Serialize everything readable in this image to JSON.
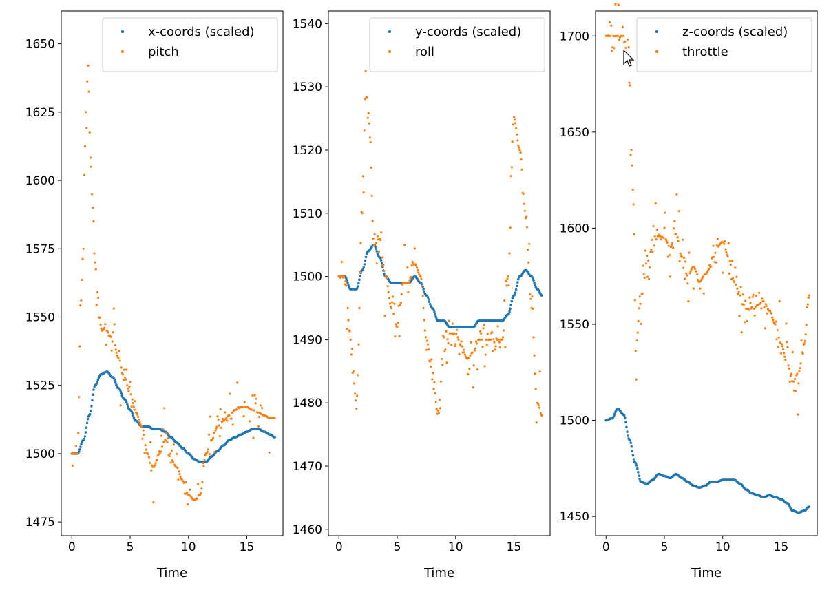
{
  "colors": {
    "series_a": "#1f77b4",
    "series_b": "#ff7f0e"
  },
  "chart_data": [
    {
      "type": "scatter",
      "xlabel": "Time",
      "ylabel": "",
      "xlim": [
        -0.9,
        18.1
      ],
      "ylim": [
        1470,
        1662
      ],
      "xticks": [
        0,
        5,
        10,
        15
      ],
      "yticks": [
        1475,
        1500,
        1525,
        1550,
        1575,
        1600,
        1625,
        1650
      ],
      "legend_position": "top-right",
      "grid": false,
      "series": [
        {
          "name": "x-coords (scaled)",
          "color": "#1f77b4",
          "x": [
            0,
            0.5,
            1,
            1.5,
            2,
            2.5,
            3,
            3.5,
            4,
            4.5,
            5,
            5.5,
            6,
            6.5,
            7,
            7.5,
            8,
            8.5,
            9,
            9.5,
            10,
            10.5,
            11,
            11.5,
            12,
            12.5,
            13,
            13.5,
            14,
            14.5,
            15,
            15.5,
            16,
            16.5,
            17,
            17.4
          ],
          "values": [
            1500,
            1500,
            1505,
            1514,
            1525,
            1529,
            1530,
            1528,
            1524,
            1520,
            1516,
            1512,
            1510,
            1510,
            1509,
            1509,
            1508,
            1506,
            1504,
            1502,
            1500,
            1498,
            1497,
            1497,
            1499,
            1501,
            1503,
            1505,
            1506,
            1507,
            1508,
            1509,
            1509,
            1508,
            1507,
            1506
          ]
        },
        {
          "name": "pitch",
          "color": "#ff7f0e",
          "x": [
            0,
            0.5,
            0.8,
            1,
            1.2,
            1.4,
            1.6,
            1.8,
            2,
            2.2,
            2.4,
            2.6,
            2.8,
            3,
            3.3,
            3.6,
            4,
            4.5,
            5,
            5.5,
            6,
            6.5,
            7,
            7.5,
            8,
            8.5,
            9,
            9.5,
            10,
            10.5,
            11,
            11.5,
            12,
            12.5,
            13,
            13.5,
            14,
            14.5,
            15,
            15.5,
            16,
            16.5,
            17,
            17.4
          ],
          "values": [
            1500,
            1500,
            1560,
            1575,
            1625,
            1640,
            1610,
            1590,
            1570,
            1560,
            1548,
            1545,
            1546,
            1545,
            1543,
            1540,
            1535,
            1528,
            1522,
            1515,
            1510,
            1500,
            1495,
            1500,
            1505,
            1498,
            1495,
            1490,
            1485,
            1483,
            1485,
            1500,
            1505,
            1510,
            1512,
            1514,
            1516,
            1517,
            1517,
            1516,
            1515,
            1514,
            1513,
            1513
          ]
        }
      ]
    },
    {
      "type": "scatter",
      "xlabel": "Time",
      "ylabel": "",
      "xlim": [
        -0.9,
        18.1
      ],
      "ylim": [
        1459,
        1542
      ],
      "xticks": [
        0,
        5,
        10,
        15
      ],
      "yticks": [
        1460,
        1470,
        1480,
        1490,
        1500,
        1510,
        1520,
        1530,
        1540
      ],
      "legend_position": "top-right",
      "grid": false,
      "series": [
        {
          "name": "y-coords (scaled)",
          "color": "#1f77b4",
          "x": [
            0,
            0.5,
            1,
            1.5,
            2,
            2.5,
            3,
            3.5,
            4,
            4.5,
            5,
            5.5,
            6,
            6.5,
            7,
            7.5,
            8,
            8.5,
            9,
            9.5,
            10,
            10.5,
            11,
            11.5,
            12,
            12.5,
            13,
            13.5,
            14,
            14.5,
            15,
            15.5,
            16,
            16.5,
            17,
            17.4
          ],
          "values": [
            1500,
            1500,
            1498,
            1498,
            1501,
            1504,
            1505,
            1503,
            1500,
            1499,
            1499,
            1499,
            1499,
            1500,
            1499,
            1497,
            1495,
            1493,
            1493,
            1492,
            1492,
            1492,
            1492,
            1492,
            1493,
            1493,
            1493,
            1493,
            1493,
            1494,
            1497,
            1500,
            1501,
            1500,
            1498,
            1497
          ]
        },
        {
          "name": "roll",
          "color": "#ff7f0e",
          "x": [
            0,
            0.5,
            1,
            1.5,
            2,
            2.3,
            2.6,
            3,
            3.5,
            4,
            4.5,
            5,
            5.5,
            6,
            6.5,
            7,
            7.5,
            8,
            8.5,
            9,
            9.5,
            10,
            10.5,
            11,
            11.5,
            12,
            12.5,
            13,
            13.5,
            14,
            14.5,
            15,
            15.5,
            16,
            16.5,
            17,
            17.4
          ],
          "values": [
            1500,
            1500,
            1490,
            1480,
            1510,
            1530,
            1525,
            1505,
            1506,
            1500,
            1495,
            1492,
            1499,
            1499,
            1502,
            1500,
            1490,
            1485,
            1478,
            1488,
            1491,
            1491,
            1489,
            1487,
            1488,
            1490,
            1490,
            1490,
            1490,
            1490,
            1500,
            1525,
            1520,
            1510,
            1495,
            1480,
            1478
          ]
        }
      ]
    },
    {
      "type": "scatter",
      "xlabel": "Time",
      "ylabel": "",
      "xlim": [
        -0.9,
        18.1
      ],
      "ylim": [
        1440,
        1713
      ],
      "xticks": [
        0,
        5,
        10,
        15
      ],
      "yticks": [
        1450,
        1500,
        1550,
        1600,
        1650,
        1700
      ],
      "legend_position": "top-right",
      "grid": false,
      "series": [
        {
          "name": "z-coords (scaled)",
          "color": "#1f77b4",
          "x": [
            0,
            0.5,
            1,
            1.5,
            2,
            2.5,
            3,
            3.5,
            4,
            4.5,
            5,
            5.5,
            6,
            6.5,
            7,
            7.5,
            8,
            8.5,
            9,
            9.5,
            10,
            10.5,
            11,
            11.5,
            12,
            12.5,
            13,
            13.5,
            14,
            14.5,
            15,
            15.5,
            16,
            16.5,
            17,
            17.4
          ],
          "values": [
            1500,
            1501,
            1506,
            1503,
            1490,
            1478,
            1468,
            1467,
            1469,
            1472,
            1471,
            1470,
            1472,
            1470,
            1468,
            1466,
            1465,
            1466,
            1468,
            1468,
            1469,
            1469,
            1469,
            1467,
            1464,
            1462,
            1461,
            1460,
            1461,
            1460,
            1459,
            1457,
            1453,
            1452,
            1453,
            1455
          ]
        },
        {
          "name": "throttle",
          "color": "#ff7f0e",
          "x": [
            0,
            0.5,
            1,
            1.5,
            2,
            2.3,
            2.6,
            3,
            3.5,
            4,
            4.5,
            5,
            5.5,
            6,
            6.5,
            7,
            7.5,
            8,
            8.5,
            9,
            9.5,
            10,
            10.5,
            11,
            11.5,
            12,
            12.5,
            13,
            13.5,
            14,
            14.5,
            15,
            15.5,
            16,
            16.5,
            17,
            17.4
          ],
          "values": [
            1700,
            1700,
            1700,
            1700,
            1680,
            1620,
            1540,
            1570,
            1582,
            1590,
            1596,
            1595,
            1590,
            1597,
            1585,
            1575,
            1580,
            1572,
            1576,
            1580,
            1590,
            1593,
            1585,
            1572,
            1565,
            1558,
            1557,
            1560,
            1562,
            1557,
            1550,
            1540,
            1530,
            1520,
            1525,
            1540,
            1565
          ]
        }
      ]
    }
  ]
}
